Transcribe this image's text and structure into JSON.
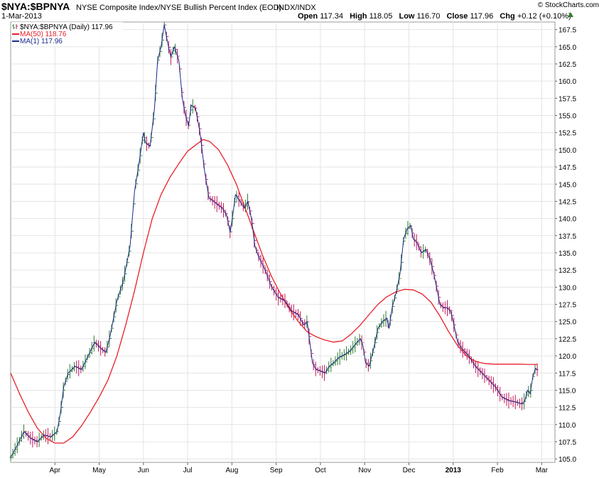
{
  "header": {
    "symbol": "$NYA:$BPNYA",
    "description": "NYSE Composite Index/NYSE Bullish Percent Index (EOD)",
    "exchange": "INDX/INDX",
    "date": "1-Mar-2013",
    "watermark": "© StockCharts.com",
    "ohlc": {
      "open_label": "Open",
      "open": "117.34",
      "high_label": "High",
      "high": "118.05",
      "low_label": "Low",
      "low": "116.70",
      "close_label": "Close",
      "close": "117.96",
      "chg_label": "Chg",
      "chg": "+0.12 (+0.10%)"
    }
  },
  "legend": {
    "price": "$NYA:$BPNYA (Daily) 117.96",
    "ma50": "MA(50) 118.76",
    "ma1": "MA(1) 117.96"
  },
  "colors": {
    "background": "#ffffff",
    "grid": "#e4e4e4",
    "price": "#1a2a8c",
    "ma50": "#e8202a",
    "up_bar": "#2e7d32",
    "down_bar": "#c2185b",
    "text": "#000000",
    "indicator": "#2e7d32"
  },
  "chart_data": {
    "type": "line",
    "title": "$NYA:$BPNYA NYSE Composite Index/NYSE Bullish Percent Index (EOD)",
    "xlabel": "",
    "ylabel": "",
    "ylim": [
      104.5,
      168.6
    ],
    "x_range": [
      0,
      12.3
    ],
    "grid": true,
    "legend_position": "top-left",
    "x_ticks": [
      {
        "label": "Apr",
        "x": 1.0
      },
      {
        "label": "May",
        "x": 2.0
      },
      {
        "label": "Jun",
        "x": 3.0
      },
      {
        "label": "Jul",
        "x": 4.0
      },
      {
        "label": "Aug",
        "x": 5.0
      },
      {
        "label": "Sep",
        "x": 6.0
      },
      {
        "label": "Oct",
        "x": 7.0
      },
      {
        "label": "Nov",
        "x": 8.0
      },
      {
        "label": "Dec",
        "x": 9.0
      },
      {
        "label": "2013",
        "x": 10.0
      },
      {
        "label": "Feb",
        "x": 11.0
      },
      {
        "label": "Mar",
        "x": 12.0
      }
    ],
    "y_ticks": [
      105.0,
      107.5,
      110.0,
      112.5,
      115.0,
      117.5,
      120.0,
      122.5,
      125.0,
      127.5,
      130.0,
      132.5,
      135.0,
      137.5,
      140.0,
      142.5,
      145.0,
      147.5,
      150.0,
      152.5,
      155.0,
      157.5,
      160.0,
      162.5,
      165.0,
      167.5
    ],
    "series": [
      {
        "name": "MA(1)",
        "color": "#1a2a8c",
        "points": [
          [
            0.0,
            105.2
          ],
          [
            0.15,
            107.0
          ],
          [
            0.3,
            109.0
          ],
          [
            0.45,
            108.0
          ],
          [
            0.6,
            107.5
          ],
          [
            0.75,
            108.5
          ],
          [
            0.9,
            108.2
          ],
          [
            1.05,
            109.0
          ],
          [
            1.12,
            111.5
          ],
          [
            1.2,
            115.5
          ],
          [
            1.3,
            117.5
          ],
          [
            1.45,
            118.5
          ],
          [
            1.6,
            118.0
          ],
          [
            1.75,
            120.0
          ],
          [
            1.9,
            122.0
          ],
          [
            2.05,
            121.0
          ],
          [
            2.15,
            120.5
          ],
          [
            2.25,
            123.0
          ],
          [
            2.4,
            128.0
          ],
          [
            2.55,
            131.0
          ],
          [
            2.7,
            136.0
          ],
          [
            2.8,
            144.0
          ],
          [
            2.9,
            148.0
          ],
          [
            3.0,
            152.5
          ],
          [
            3.05,
            151.0
          ],
          [
            3.15,
            150.5
          ],
          [
            3.25,
            156.0
          ],
          [
            3.32,
            163.0
          ],
          [
            3.4,
            165.0
          ],
          [
            3.47,
            168.2
          ],
          [
            3.55,
            165.5
          ],
          [
            3.62,
            163.5
          ],
          [
            3.7,
            165.0
          ],
          [
            3.8,
            163.0
          ],
          [
            3.88,
            157.5
          ],
          [
            3.95,
            155.0
          ],
          [
            4.02,
            153.5
          ],
          [
            4.08,
            156.5
          ],
          [
            4.18,
            156.0
          ],
          [
            4.28,
            152.5
          ],
          [
            4.38,
            147.0
          ],
          [
            4.48,
            143.0
          ],
          [
            4.58,
            142.5
          ],
          [
            4.68,
            142.0
          ],
          [
            4.78,
            141.5
          ],
          [
            4.88,
            140.5
          ],
          [
            4.96,
            138.0
          ],
          [
            5.02,
            140.5
          ],
          [
            5.08,
            143.5
          ],
          [
            5.18,
            142.5
          ],
          [
            5.28,
            141.5
          ],
          [
            5.36,
            142.5
          ],
          [
            5.44,
            140.0
          ],
          [
            5.52,
            136.0
          ],
          [
            5.6,
            134.5
          ],
          [
            5.75,
            132.5
          ],
          [
            5.9,
            130.0
          ],
          [
            6.05,
            128.5
          ],
          [
            6.2,
            128.0
          ],
          [
            6.35,
            126.5
          ],
          [
            6.5,
            126.0
          ],
          [
            6.62,
            124.5
          ],
          [
            6.7,
            125.0
          ],
          [
            6.76,
            122.0
          ],
          [
            6.82,
            119.0
          ],
          [
            6.9,
            118.0
          ],
          [
            7.0,
            117.8
          ],
          [
            7.1,
            117.5
          ],
          [
            7.2,
            118.5
          ],
          [
            7.3,
            119.0
          ],
          [
            7.42,
            119.8
          ],
          [
            7.55,
            120.2
          ],
          [
            7.68,
            120.8
          ],
          [
            7.8,
            121.8
          ],
          [
            7.9,
            122.5
          ],
          [
            7.96,
            121.5
          ],
          [
            8.02,
            119.0
          ],
          [
            8.1,
            118.5
          ],
          [
            8.2,
            121.0
          ],
          [
            8.3,
            124.0
          ],
          [
            8.4,
            125.0
          ],
          [
            8.5,
            125.5
          ],
          [
            8.55,
            124.0
          ],
          [
            8.62,
            127.0
          ],
          [
            8.72,
            129.5
          ],
          [
            8.8,
            132.0
          ],
          [
            8.88,
            137.0
          ],
          [
            8.96,
            138.5
          ],
          [
            9.04,
            139.0
          ],
          [
            9.1,
            137.0
          ],
          [
            9.18,
            136.5
          ],
          [
            9.28,
            135.0
          ],
          [
            9.38,
            135.5
          ],
          [
            9.48,
            134.0
          ],
          [
            9.56,
            132.0
          ],
          [
            9.64,
            129.5
          ],
          [
            9.7,
            127.5
          ],
          [
            9.78,
            127.0
          ],
          [
            9.86,
            127.0
          ],
          [
            9.94,
            126.5
          ],
          [
            10.0,
            125.0
          ],
          [
            10.1,
            122.0
          ],
          [
            10.2,
            121.0
          ],
          [
            10.35,
            120.0
          ],
          [
            10.5,
            118.5
          ],
          [
            10.65,
            117.5
          ],
          [
            10.8,
            116.5
          ],
          [
            10.95,
            115.5
          ],
          [
            11.1,
            114.0
          ],
          [
            11.25,
            113.5
          ],
          [
            11.4,
            113.3
          ],
          [
            11.55,
            113.0
          ],
          [
            11.62,
            113.5
          ],
          [
            11.68,
            115.0
          ],
          [
            11.74,
            114.5
          ],
          [
            11.8,
            117.0
          ],
          [
            11.86,
            118.2
          ],
          [
            11.9,
            117.96
          ]
        ]
      },
      {
        "name": "MA(50)",
        "color": "#e8202a",
        "points": [
          [
            0.0,
            117.5
          ],
          [
            0.2,
            114.5
          ],
          [
            0.4,
            111.8
          ],
          [
            0.6,
            109.5
          ],
          [
            0.8,
            108.0
          ],
          [
            1.0,
            107.3
          ],
          [
            1.2,
            107.3
          ],
          [
            1.4,
            108.2
          ],
          [
            1.6,
            109.8
          ],
          [
            1.8,
            111.8
          ],
          [
            2.0,
            114.0
          ],
          [
            2.2,
            116.5
          ],
          [
            2.4,
            120.0
          ],
          [
            2.6,
            124.5
          ],
          [
            2.8,
            129.5
          ],
          [
            3.0,
            135.0
          ],
          [
            3.2,
            140.0
          ],
          [
            3.4,
            143.5
          ],
          [
            3.6,
            146.0
          ],
          [
            3.8,
            148.0
          ],
          [
            4.0,
            149.8
          ],
          [
            4.2,
            150.8
          ],
          [
            4.35,
            151.5
          ],
          [
            4.5,
            151.2
          ],
          [
            4.7,
            150.0
          ],
          [
            4.9,
            147.8
          ],
          [
            5.1,
            145.0
          ],
          [
            5.3,
            141.5
          ],
          [
            5.5,
            138.0
          ],
          [
            5.7,
            134.5
          ],
          [
            5.9,
            131.5
          ],
          [
            6.1,
            129.0
          ],
          [
            6.3,
            126.8
          ],
          [
            6.5,
            125.0
          ],
          [
            6.7,
            123.5
          ],
          [
            6.9,
            122.8
          ],
          [
            7.1,
            122.3
          ],
          [
            7.3,
            122.0
          ],
          [
            7.5,
            122.2
          ],
          [
            7.7,
            123.2
          ],
          [
            7.9,
            124.5
          ],
          [
            8.1,
            126.0
          ],
          [
            8.3,
            127.5
          ],
          [
            8.5,
            128.6
          ],
          [
            8.7,
            129.3
          ],
          [
            8.9,
            129.7
          ],
          [
            9.1,
            129.6
          ],
          [
            9.3,
            129.0
          ],
          [
            9.5,
            127.8
          ],
          [
            9.7,
            125.8
          ],
          [
            9.9,
            123.5
          ],
          [
            10.1,
            121.5
          ],
          [
            10.3,
            120.0
          ],
          [
            10.5,
            119.2
          ],
          [
            10.7,
            118.9
          ],
          [
            10.9,
            118.8
          ],
          [
            11.1,
            118.8
          ],
          [
            11.3,
            118.8
          ],
          [
            11.5,
            118.8
          ],
          [
            11.7,
            118.76
          ],
          [
            11.9,
            118.76
          ]
        ]
      }
    ]
  }
}
